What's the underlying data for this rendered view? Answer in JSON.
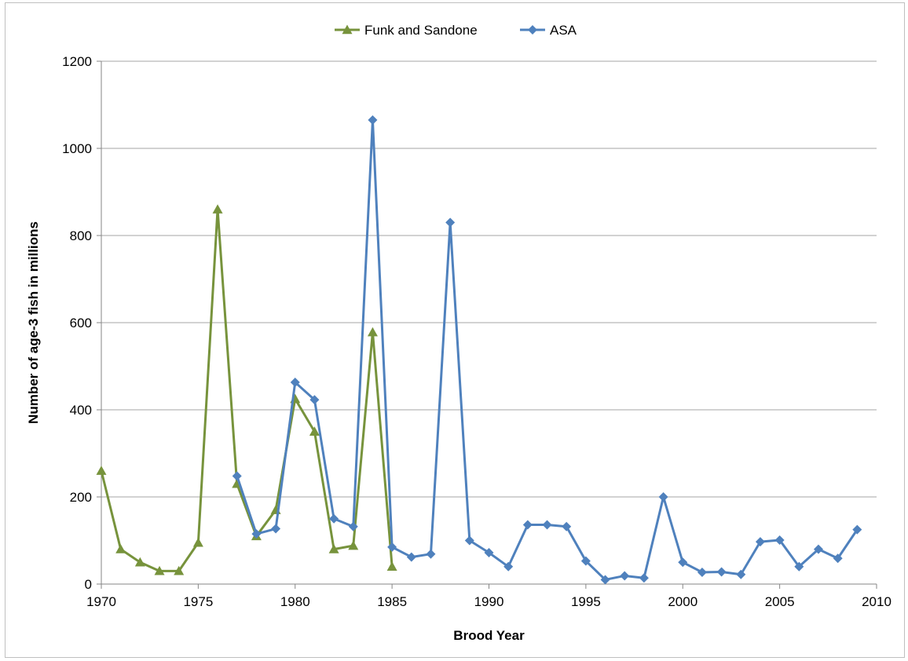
{
  "chart_data": {
    "type": "line",
    "title": "",
    "xlabel": "Brood Year",
    "ylabel": "Number of age-3 fish in millions",
    "xlim": [
      1970,
      2010
    ],
    "ylim": [
      0,
      1200
    ],
    "x_ticks": [
      "1970",
      "1975",
      "1980",
      "1985",
      "1990",
      "1995",
      "2000",
      "2005",
      "2010"
    ],
    "y_ticks": [
      "0",
      "200",
      "400",
      "600",
      "800",
      "1000",
      "1200"
    ],
    "grid": "horizontal",
    "legend_position": "top",
    "series": [
      {
        "name": "Funk and Sandone",
        "color": "#77933c",
        "marker": "triangle",
        "x": [
          1970,
          1971,
          1972,
          1973,
          1974,
          1975,
          1976,
          1977,
          1978,
          1979,
          1980,
          1981,
          1982,
          1983,
          1984,
          1985
        ],
        "values": [
          260,
          80,
          50,
          30,
          30,
          95,
          860,
          230,
          110,
          170,
          425,
          350,
          80,
          88,
          578,
          40
        ]
      },
      {
        "name": "ASA",
        "color": "#4f81bd",
        "marker": "diamond",
        "x": [
          1977,
          1978,
          1979,
          1980,
          1981,
          1982,
          1983,
          1984,
          1985,
          1986,
          1987,
          1988,
          1989,
          1990,
          1991,
          1992,
          1993,
          1994,
          1995,
          1996,
          1997,
          1998,
          1999,
          2000,
          2001,
          2002,
          2003,
          2004,
          2005,
          2006,
          2007,
          2008,
          2009
        ],
        "values": [
          248,
          115,
          127,
          463,
          423,
          150,
          132,
          1065,
          85,
          62,
          69,
          830,
          100,
          72,
          40,
          136,
          136,
          132,
          53,
          10,
          19,
          14,
          200,
          50,
          27,
          28,
          22,
          97,
          101,
          40,
          80,
          59,
          125
        ]
      }
    ]
  }
}
